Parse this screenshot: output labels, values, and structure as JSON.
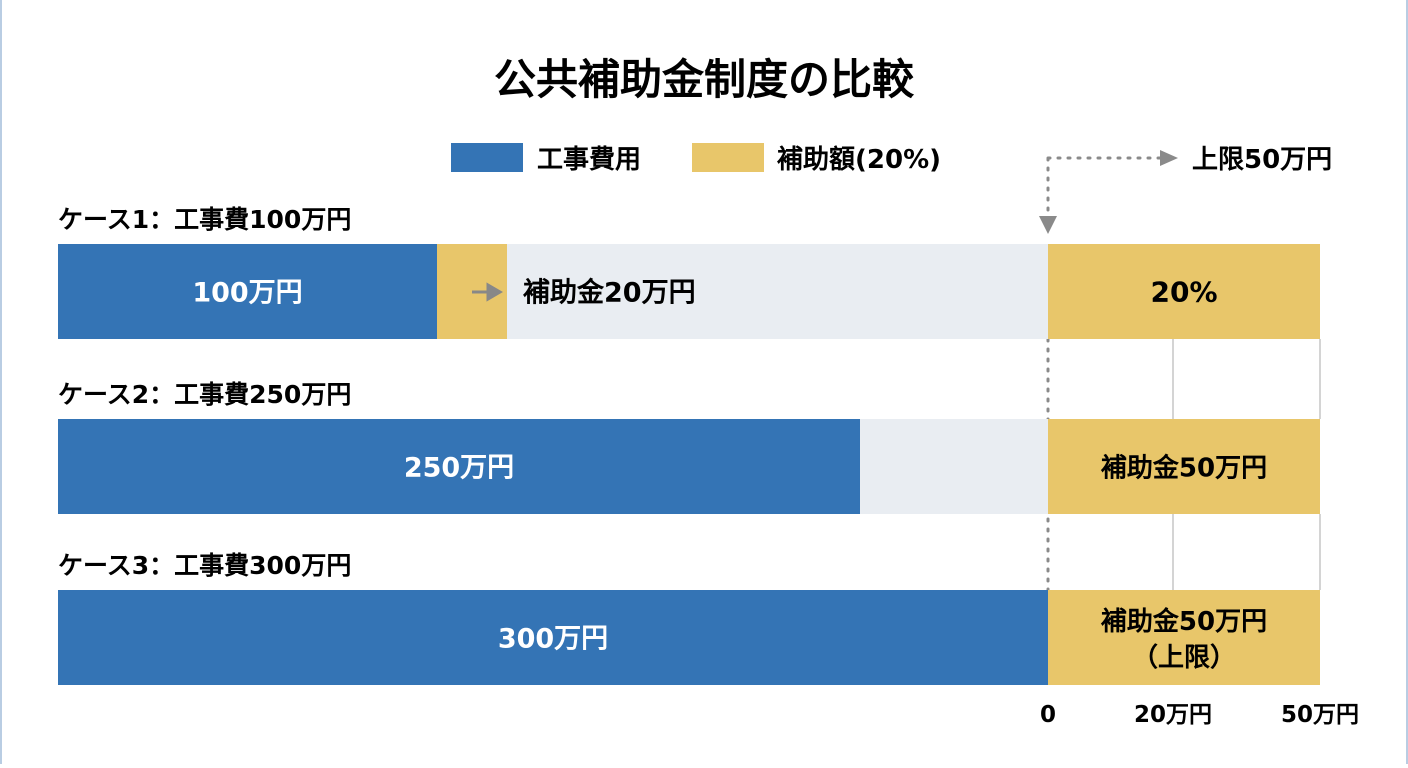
{
  "chart_data": {
    "type": "bar",
    "title": "公共補助金制度の比較",
    "legend": [
      {
        "name": "工事費用",
        "color": "#3474b5"
      },
      {
        "name": "補助額(20%)",
        "color": "#e8c66a"
      }
    ],
    "legend_placement": "top",
    "cap_annotation": "上限50万円",
    "cap_value": 50,
    "rate": "20%",
    "unit": "万円",
    "categories": [
      "ケース1：工事費100万円",
      "ケース2：工事費250万円",
      "ケース3：工事費300万円"
    ],
    "cost_values": [
      100,
      250,
      300
    ],
    "subsidy_values": [
      20,
      50,
      50
    ],
    "cost_labels": [
      "100万円",
      "250万円",
      "300万円"
    ],
    "inline_subsidy_label": "補助金20万円",
    "right_labels": [
      "20%",
      "補助金50万円",
      "補助金50万円"
    ],
    "right_sublabel": "（上限）",
    "right_axis_ticks": [
      "0",
      "20万円",
      "50万円"
    ],
    "cost_xlim": [
      0,
      300
    ],
    "right_axis_range": [
      0,
      50
    ],
    "colors": {
      "cost": "#3474b5",
      "subsidy": "#e8c66a",
      "track": "#e9edf2",
      "guide": "#8a8a8a"
    }
  }
}
